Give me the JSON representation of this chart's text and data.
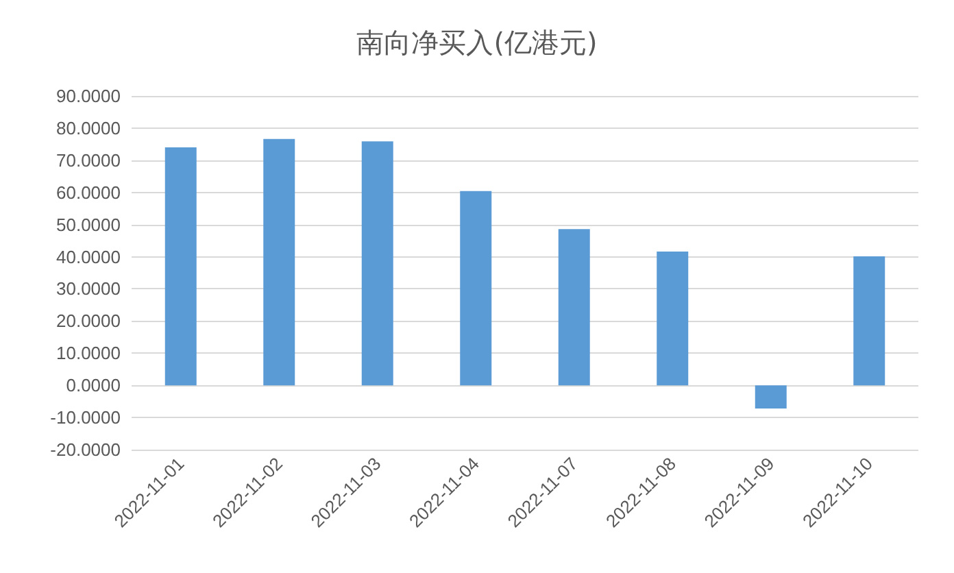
{
  "chart_data": {
    "type": "bar",
    "title": "南向净买入(亿港元)",
    "categories": [
      "2022-11-01",
      "2022-11-02",
      "2022-11-03",
      "2022-11-04",
      "2022-11-07",
      "2022-11-08",
      "2022-11-09",
      "2022-11-10"
    ],
    "values": [
      74.0,
      76.6,
      75.9,
      60.4,
      48.6,
      41.6,
      -7.2,
      40.1
    ],
    "color": "#5b9bd5",
    "ylim": [
      -20,
      90
    ],
    "yticks": [
      {
        "value": -20,
        "label": "-20.0000"
      },
      {
        "value": -10,
        "label": "-10.0000"
      },
      {
        "value": 0,
        "label": "0.0000"
      },
      {
        "value": 10,
        "label": "10.0000"
      },
      {
        "value": 20,
        "label": "20.0000"
      },
      {
        "value": 30,
        "label": "30.0000"
      },
      {
        "value": 40,
        "label": "40.0000"
      },
      {
        "value": 50,
        "label": "50.0000"
      },
      {
        "value": 60,
        "label": "60.0000"
      },
      {
        "value": 70,
        "label": "70.0000"
      },
      {
        "value": 80,
        "label": "80.0000"
      },
      {
        "value": 90,
        "label": "90.0000"
      }
    ],
    "grid": "y"
  }
}
